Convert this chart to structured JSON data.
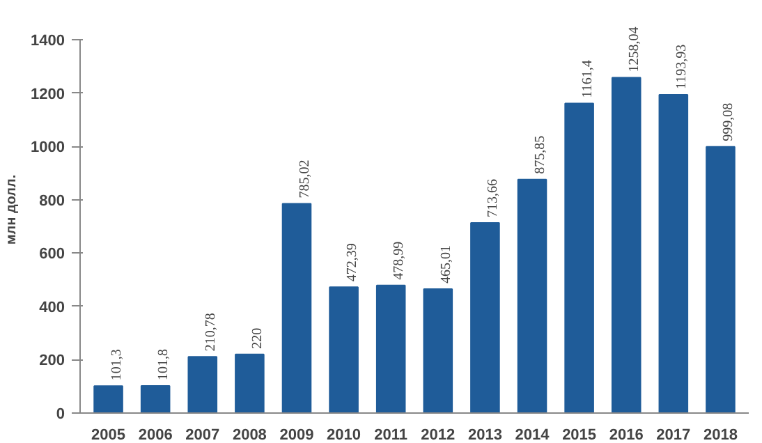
{
  "chart_data": {
    "type": "bar",
    "ylabel": "млн долл.",
    "categories": [
      "2005",
      "2006",
      "2007",
      "2008",
      "2009",
      "2010",
      "2011",
      "2012",
      "2013",
      "2014",
      "2015",
      "2016",
      "2017",
      "2018"
    ],
    "values": [
      101.3,
      101.8,
      210.78,
      220,
      785.02,
      472.39,
      478.99,
      465.01,
      713.66,
      875.85,
      1161.4,
      1258.04,
      1193.93,
      999.08
    ],
    "value_labels": [
      "101,3",
      "101,8",
      "210,78",
      "220",
      "785,02",
      "472,39",
      "478,99",
      "465,01",
      "713,66",
      "875,85",
      "1161,4",
      "1258,04",
      "1193,93",
      "999,08"
    ],
    "color": "#1f5c99",
    "ylim": [
      0,
      1400
    ],
    "yticks": [
      0,
      200,
      400,
      600,
      800,
      1000,
      1200,
      1400
    ],
    "grid": false
  }
}
